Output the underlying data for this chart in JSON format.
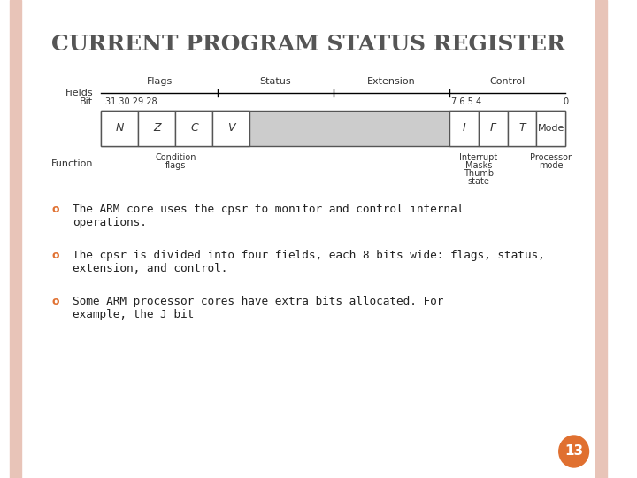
{
  "title": "CURRENT PROGRAM STATUS REGISTER",
  "title_color": "#555555",
  "bg_color": "#ffffff",
  "border_color": "#e8c4b8",
  "bullet_color": "#e07030",
  "bullet_points": [
    "The ARM core uses the cpsr to monitor and control internal\noperations.",
    "The cpsr is divided into four fields, each 8 bits wide: flags, status,\nextension, and control.",
    "Some ARM processor cores have extra bits allocated. For\nexample, the J bit"
  ],
  "page_number": "13",
  "page_badge_color": "#e07030",
  "diagram": {
    "fields_label": "Fields",
    "bit_label": "Bit",
    "function_label": "Function",
    "field_names": [
      "Flags",
      "Status",
      "Extension",
      "Control"
    ],
    "bit_numbers_left": "31 30 29 28",
    "bit_numbers_right": "7 6 5 4",
    "bit_number_rightmost": "0",
    "register_cells_left": [
      "N",
      "Z",
      "C",
      "V"
    ],
    "register_cells_right": [
      "I",
      "F",
      "T"
    ],
    "register_cell_mode": "Mode",
    "function_labels_left": [
      "Condition",
      "flags"
    ],
    "function_labels_mid": [
      "Interrupt",
      "Masks",
      "Thumb",
      "state"
    ],
    "function_labels_right": [
      "Processor",
      "mode"
    ]
  }
}
